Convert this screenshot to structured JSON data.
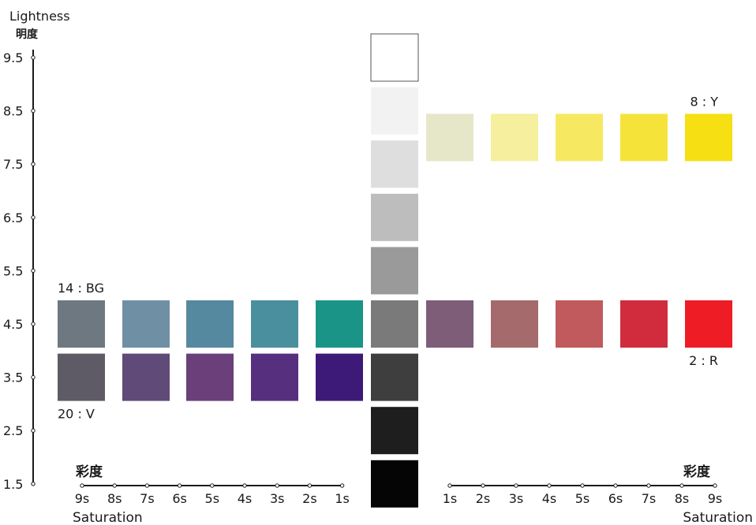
{
  "lightness_axis": {
    "label_en": "Lightness",
    "label_ja": "明度",
    "ticks": [
      {
        "label": "9.5",
        "value": 9.5
      },
      {
        "label": "8.5",
        "value": 8.5
      },
      {
        "label": "7.5",
        "value": 7.5
      },
      {
        "label": "6.5",
        "value": 6.5
      },
      {
        "label": "5.5",
        "value": 5.5
      },
      {
        "label": "4.5",
        "value": 4.5
      },
      {
        "label": "3.5",
        "value": 3.5
      },
      {
        "label": "2.5",
        "value": 2.5
      },
      {
        "label": "1.5",
        "value": 1.5
      }
    ]
  },
  "saturation_axis_left": {
    "label_ja": "彩度",
    "label_en": "Saturation",
    "ticks": [
      "9s",
      "8s",
      "7s",
      "6s",
      "5s",
      "4s",
      "3s",
      "2s",
      "1s"
    ]
  },
  "saturation_axis_right": {
    "label_ja": "彩度",
    "label_en": "Saturation",
    "ticks": [
      "1s",
      "2s",
      "3s",
      "4s",
      "5s",
      "6s",
      "7s",
      "8s",
      "9s"
    ]
  },
  "gray_column": [
    {
      "lightness": 9.5,
      "color": "#ffffff"
    },
    {
      "lightness": 8.5,
      "color": "#f2f2f2"
    },
    {
      "lightness": 7.5,
      "color": "#dedede"
    },
    {
      "lightness": 6.5,
      "color": "#bdbdbd"
    },
    {
      "lightness": 5.5,
      "color": "#9a9a9a"
    },
    {
      "lightness": 4.5,
      "color": "#7a7a7a"
    },
    {
      "lightness": 3.5,
      "color": "#3e3e3e"
    },
    {
      "lightness": 2.5,
      "color": "#1e1e1e"
    },
    {
      "lightness": 1.5,
      "color": "#050505"
    }
  ],
  "hue_rows": [
    {
      "id": "yellow",
      "label": "8 : Y",
      "label_pos": "above-end",
      "side": "right",
      "lightness": 8.0,
      "colors": [
        "#e6e7c8",
        "#f5ef9e",
        "#f7e862",
        "#f6e33a",
        "#f6df12"
      ]
    },
    {
      "id": "red",
      "label": "2 : R",
      "label_pos": "below-end",
      "side": "right",
      "lightness": 4.5,
      "colors": [
        "#7d5d78",
        "#a56a6c",
        "#c05a5c",
        "#d02c3e",
        "#ee1d25"
      ]
    },
    {
      "id": "blue-green",
      "label": "14 : BG",
      "label_pos": "above-end",
      "side": "left",
      "lightness": 4.5,
      "colors": [
        "#1b9488",
        "#4a8f9e",
        "#55899f",
        "#6f8fa5",
        "#6e7881"
      ]
    },
    {
      "id": "violet",
      "label": "20 : V",
      "label_pos": "below-end",
      "side": "left",
      "lightness": 3.5,
      "colors": [
        "#3d1a78",
        "#562f7e",
        "#6a3f7a",
        "#5f4a78",
        "#5e5a66"
      ]
    }
  ]
}
